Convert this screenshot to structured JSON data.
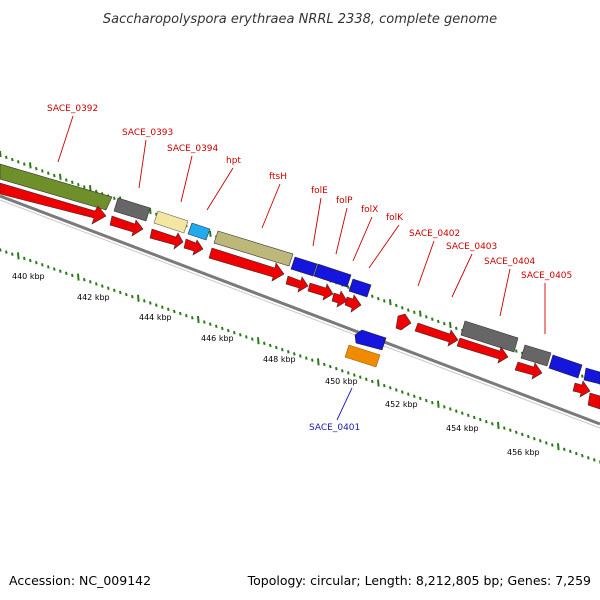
{
  "title": "Saccharopolyspora erythraea NRRL 2338, complete genome",
  "footer": {
    "accession": "Accession: NC_009142",
    "stats": "Topology: circular; Length: 8,212,805 bp; Genes: 7,259"
  },
  "colors": {
    "label_red": "#cc0000",
    "label_blue": "#1a1ab3",
    "backbone": "#888888",
    "tick_green": "#2a7a1a"
  },
  "scale_labels": [
    "440 kbp",
    "442 kbp",
    "444 kbp",
    "446 kbp",
    "448 kbp",
    "450 kbp",
    "452 kbp",
    "454 kbp",
    "456 kbp"
  ],
  "gene_labels": [
    {
      "text": "SACE_0392",
      "color": "red"
    },
    {
      "text": "SACE_0393",
      "color": "red"
    },
    {
      "text": "SACE_0394",
      "color": "red"
    },
    {
      "text": "hpt",
      "color": "red"
    },
    {
      "text": "ftsH",
      "color": "red"
    },
    {
      "text": "folE",
      "color": "red"
    },
    {
      "text": "folP",
      "color": "red"
    },
    {
      "text": "folX",
      "color": "red"
    },
    {
      "text": "folK",
      "color": "red"
    },
    {
      "text": "SACE_0402",
      "color": "red"
    },
    {
      "text": "SACE_0403",
      "color": "red"
    },
    {
      "text": "SACE_0404",
      "color": "red"
    },
    {
      "text": "SACE_0405",
      "color": "red"
    },
    {
      "text": "SACE_0401",
      "color": "blue"
    }
  ],
  "features": [
    {
      "kind": "gene",
      "color": "#6f8f2a"
    },
    {
      "kind": "cds",
      "color": "#ee0000"
    },
    {
      "kind": "gene",
      "color": "#666666"
    },
    {
      "kind": "cds",
      "color": "#ee0000"
    },
    {
      "kind": "gene",
      "color": "#f2e6a0"
    },
    {
      "kind": "gene",
      "color": "#22aaee"
    },
    {
      "kind": "cds",
      "color": "#ee0000"
    },
    {
      "kind": "cds",
      "color": "#ee0000"
    },
    {
      "kind": "gene",
      "color": "#bdb87a"
    },
    {
      "kind": "cds",
      "color": "#ee0000"
    },
    {
      "kind": "gene",
      "color": "#1515dd"
    },
    {
      "kind": "gene",
      "color": "#1515dd"
    },
    {
      "kind": "gene",
      "color": "#1515dd"
    },
    {
      "kind": "cds",
      "color": "#ee0000"
    },
    {
      "kind": "cds",
      "color": "#ee0000"
    },
    {
      "kind": "cds",
      "color": "#ee0000"
    },
    {
      "kind": "cds",
      "color": "#ee0000"
    },
    {
      "kind": "cds",
      "color": "#ee0000"
    },
    {
      "kind": "cds",
      "color": "#ee0000"
    },
    {
      "kind": "gene",
      "color": "#666666"
    },
    {
      "kind": "cds",
      "color": "#ee0000"
    },
    {
      "kind": "gene",
      "color": "#666666"
    },
    {
      "kind": "cds",
      "color": "#ee0000"
    },
    {
      "kind": "gene",
      "color": "#1515dd"
    },
    {
      "kind": "cds",
      "color": "#ee0000"
    },
    {
      "kind": "gene",
      "color": "#1515dd"
    },
    {
      "kind": "gene",
      "color": "#f08a00"
    }
  ]
}
